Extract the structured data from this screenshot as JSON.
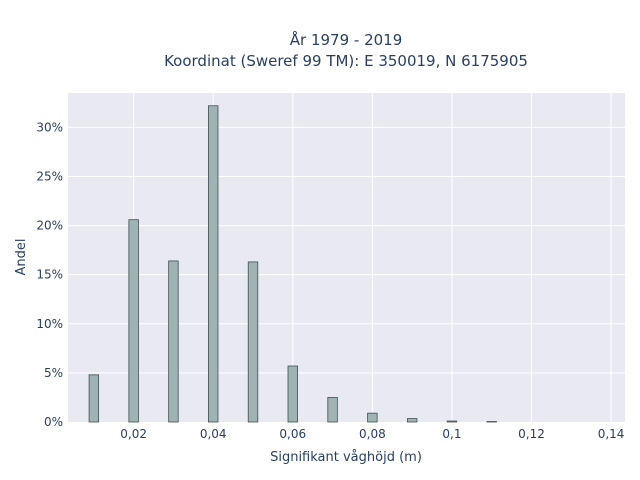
{
  "chart_data": {
    "type": "bar",
    "title": "År 1979 - 2019",
    "subtitle": "Koordinat (Sweref 99 TM): E 350019, N 6175905",
    "xlabel": "Signifikant våghöjd (m)",
    "ylabel": "Andel",
    "xlim": [
      0.0035,
      0.1435
    ],
    "ylim": [
      0,
      33.5
    ],
    "x_ticks": [
      0.02,
      0.04,
      0.06,
      0.08,
      0.1,
      0.12,
      0.14
    ],
    "x_tick_labels": [
      "0,02",
      "0,04",
      "0,06",
      "0,08",
      "0,1",
      "0,12",
      "0,14"
    ],
    "y_ticks": [
      0,
      5,
      10,
      15,
      20,
      25,
      30
    ],
    "y_tick_labels": [
      "0%",
      "5%",
      "10%",
      "15%",
      "20%",
      "25%",
      "30%"
    ],
    "bar_width": 0.0024,
    "x": [
      0.01,
      0.02,
      0.03,
      0.04,
      0.05,
      0.06,
      0.07,
      0.08,
      0.09,
      0.1,
      0.11
    ],
    "values": [
      4.8,
      20.6,
      16.4,
      32.2,
      16.3,
      5.7,
      2.5,
      0.9,
      0.35,
      0.1,
      0.05
    ],
    "grid": true,
    "colors": {
      "plot_bg": "#e9e9f2",
      "grid": "#ffffff",
      "bar_fill": "#9fb3b3",
      "bar_stroke": "#3f4f4f",
      "text": "#2a3f5f"
    }
  }
}
